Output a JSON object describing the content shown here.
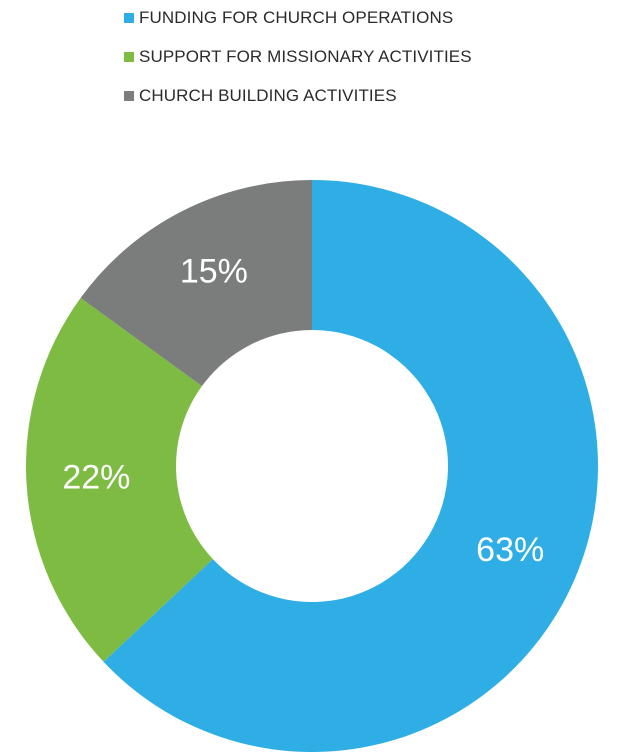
{
  "chart_data": {
    "type": "pie",
    "style": "donut",
    "categories": [
      "FUNDING FOR CHURCH OPERATIONS",
      "SUPPORT FOR MISSIONARY ACTIVITIES",
      "CHURCH BUILDING ACTIVITIES"
    ],
    "values": [
      63,
      22,
      15
    ],
    "value_labels": [
      "63%",
      "22%",
      "15%"
    ],
    "colors": [
      "#2eaee4",
      "#7dbb42",
      "#7b7c7c"
    ],
    "legend_position": "top",
    "start_angle_deg": 0,
    "direction": "clockwise"
  }
}
